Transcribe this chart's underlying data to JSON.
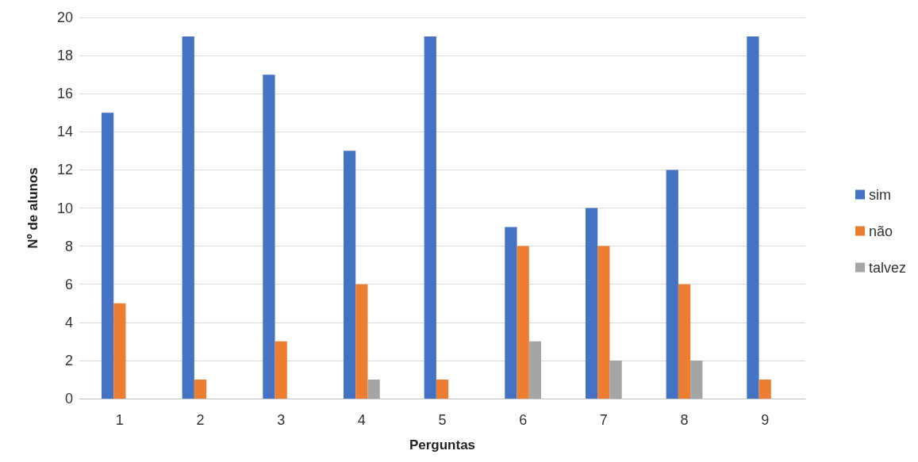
{
  "chart_data": {
    "type": "bar",
    "xlabel": "Perguntas",
    "ylabel": "Nº de alunos",
    "categories": [
      "1",
      "2",
      "3",
      "4",
      "5",
      "6",
      "7",
      "8",
      "9"
    ],
    "series": [
      {
        "name": "sim",
        "color": "#4472c4",
        "values": [
          15,
          19,
          17,
          13,
          19,
          9,
          10,
          12,
          19
        ]
      },
      {
        "name": "não",
        "color": "#ed7d31",
        "values": [
          5,
          1,
          3,
          6,
          1,
          8,
          8,
          6,
          1
        ]
      },
      {
        "name": "talvez",
        "color": "#a5a5a5",
        "values": [
          0,
          0,
          0,
          1,
          0,
          3,
          2,
          2,
          0
        ]
      }
    ],
    "ylim": [
      0,
      20
    ],
    "yticks": [
      0,
      2,
      4,
      6,
      8,
      10,
      12,
      14,
      16,
      18,
      20
    ],
    "grid": "y",
    "legend": "right"
  }
}
